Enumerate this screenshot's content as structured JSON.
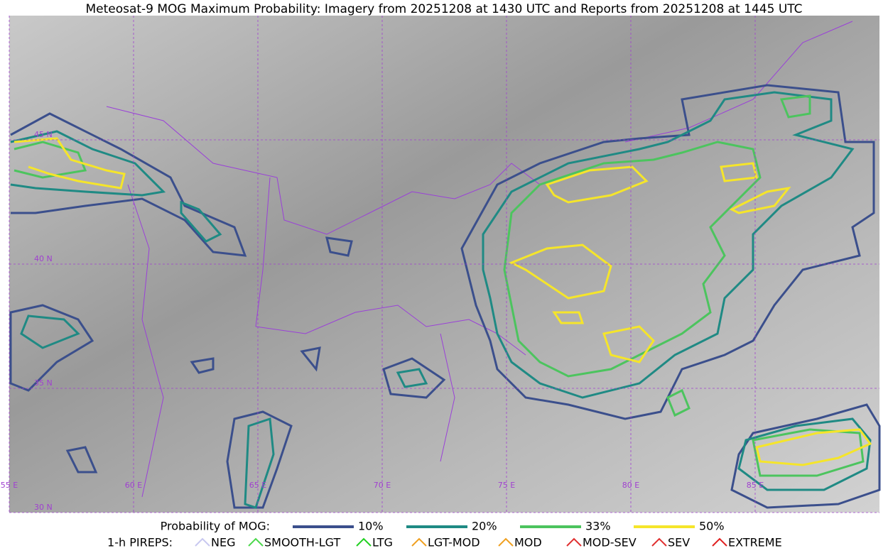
{
  "header": {
    "title": "Meteosat-9 MOG Maximum Probability: Imagery from 20251208 at 1430 UTC and Reports from 20251208 at 1445 UTC"
  },
  "map": {
    "lat_labels": [
      "45 N",
      "40 N",
      "35 N",
      "30 N"
    ],
    "lon_labels": [
      "55 E",
      "60 E",
      "65 E",
      "70 E",
      "75 E",
      "80 E",
      "85 E"
    ]
  },
  "legend": {
    "probability_title": "Probability of MOG:",
    "probability_levels": [
      "10%",
      "20%",
      "33%",
      "50%"
    ],
    "pireps_title": "1-h PIREPS:",
    "pireps": [
      "NEG",
      "SMOOTH-LGT",
      "LTG",
      "LGT-MOD",
      "MOD",
      "MOD-SEV",
      "SEV",
      "EXTREME"
    ]
  }
}
